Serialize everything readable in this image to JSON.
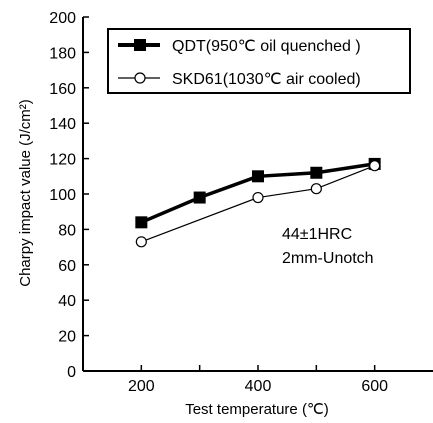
{
  "chart_data": {
    "type": "line",
    "title": "",
    "xlabel": "Test temperature (℃)",
    "ylabel": "Charpy impact value (J/cm²)",
    "x": [
      200,
      300,
      400,
      500,
      600
    ],
    "xlim": [
      100,
      700
    ],
    "ylim": [
      0,
      200
    ],
    "xticks": [
      "200",
      "400",
      "600"
    ],
    "yticks": [
      "0",
      "20",
      "40",
      "60",
      "80",
      "100",
      "120",
      "140",
      "160",
      "180",
      "200"
    ],
    "grid": false,
    "legend_position": "top-right",
    "series": [
      {
        "name": "QDT(950℃ oil quenched )",
        "marker": "filled-square",
        "color": "#000000",
        "values": [
          84,
          98,
          110,
          112,
          117
        ]
      },
      {
        "name": "SKD61(1030℃ air cooled)",
        "marker": "open-circle",
        "color": "#000000",
        "values": [
          73,
          null,
          98,
          103,
          116
        ]
      }
    ],
    "annotations": [
      "44±1HRC",
      "2mm-Unotch"
    ]
  }
}
